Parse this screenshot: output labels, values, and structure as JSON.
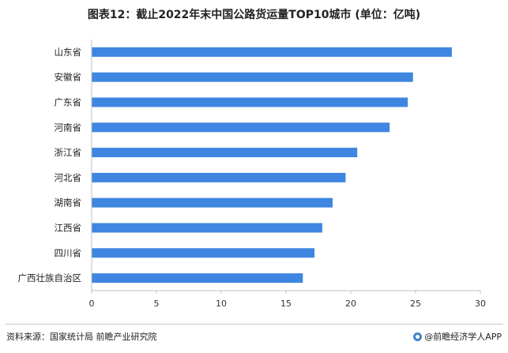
{
  "title": "图表12：截止2022年末中国公路货运量TOP10城市 (单位：亿吨)",
  "chart_data": {
    "type": "bar",
    "orientation": "horizontal",
    "title": "图表12：截止2022年末中国公路货运量TOP10城市 (单位：亿吨)",
    "categories": [
      "山东省",
      "安徽省",
      "广东省",
      "河南省",
      "浙江省",
      "河北省",
      "湖南省",
      "江西省",
      "四川省",
      "广西壮族自治区"
    ],
    "values": [
      27.8,
      24.8,
      24.4,
      23.0,
      20.5,
      19.6,
      18.6,
      17.8,
      17.2,
      16.3
    ],
    "x_ticks": [
      0,
      5,
      10,
      15,
      20,
      25,
      30
    ],
    "xlim": [
      0,
      30
    ],
    "bar_color": "#3e86e0",
    "grid": false,
    "legend": "none"
  },
  "footer": {
    "source": "资料来源：国家统计局 前瞻产业研究院",
    "brand": "@前瞻经济学人APP"
  }
}
